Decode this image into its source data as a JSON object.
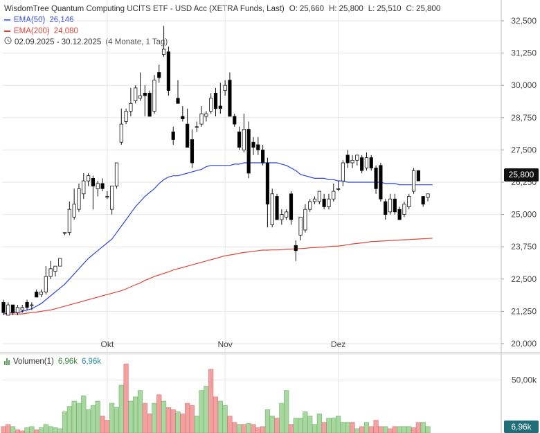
{
  "header": {
    "title": "WisdomTree Quantum Computing UCITS ETF - USD Acc (XETRA Funds, Last)",
    "ohlc": {
      "o_label": "O:",
      "o": "25,660",
      "h_label": "H:",
      "h": "25,800",
      "l_label": "L:",
      "l": "25,510",
      "c_label": "C:",
      "c": "25,800"
    },
    "ema50": {
      "label": "EMA(50)",
      "value": "26,146",
      "color": "#2b45d6"
    },
    "ema200": {
      "label": "EMA(200)",
      "value": "24,080",
      "color": "#e0453a"
    },
    "range": {
      "icon": "clock-icon",
      "dates": "02.09.2025 - 30.12.2025",
      "span": "(4 Monate, 1 Tag)"
    }
  },
  "last_price_badge": "25,800",
  "volume": {
    "label": "Volumen(1)",
    "value1": "6,96k",
    "value2": "6,96k",
    "badge": "6,96k",
    "axis_label": "50,00k"
  },
  "colors": {
    "up": "#ffffff",
    "down": "#000000",
    "vol_up": "#a8d8a0",
    "vol_down": "#f2a0a0",
    "grid": "#e6e6e6"
  },
  "chart_data": {
    "type": "candlestick",
    "y_axis": {
      "ticks": [
        "32,500",
        "31,250",
        "30,000",
        "28,750",
        "27,500",
        "26,250",
        "25,000",
        "23,750",
        "22,500",
        "21,250",
        "20,000"
      ],
      "tick_values": [
        32.5,
        31.25,
        30,
        28.75,
        27.5,
        26.25,
        25,
        23.75,
        22.5,
        21.25,
        20
      ],
      "ylim": [
        20.0,
        32.5
      ],
      "position": "right"
    },
    "x_axis": {
      "labels": [
        "Okt",
        "Nov",
        "Dez"
      ],
      "label_index": [
        22,
        47,
        71
      ]
    },
    "candles": [
      {
        "o": 21.6,
        "h": 21.7,
        "l": 21.1,
        "c": 21.2
      },
      {
        "o": 21.1,
        "h": 21.6,
        "l": 21.1,
        "c": 21.5
      },
      {
        "o": 21.5,
        "h": 21.5,
        "l": 21.1,
        "c": 21.2
      },
      {
        "o": 21.2,
        "h": 21.5,
        "l": 21.1,
        "c": 21.4
      },
      {
        "o": 21.3,
        "h": 21.5,
        "l": 21.2,
        "c": 21.4
      },
      {
        "o": 21.6,
        "h": 21.7,
        "l": 21.3,
        "c": 21.4
      },
      {
        "o": 21.5,
        "h": 21.6,
        "l": 21.3,
        "c": 21.5
      },
      {
        "o": 22.0,
        "h": 22.1,
        "l": 21.8,
        "c": 21.8
      },
      {
        "o": 21.9,
        "h": 22.1,
        "l": 21.8,
        "c": 22.0
      },
      {
        "o": 22.0,
        "h": 23.0,
        "l": 21.9,
        "c": 22.6
      },
      {
        "o": 22.6,
        "h": 23.2,
        "l": 22.5,
        "c": 22.9
      },
      {
        "o": 22.8,
        "h": 23.0,
        "l": 22.6,
        "c": 23.0
      },
      {
        "o": 23.0,
        "h": 23.3,
        "l": 23.0,
        "c": 23.3
      },
      {
        "o": 24.3,
        "h": 24.3,
        "l": 24.2,
        "c": 24.3
      },
      {
        "o": 24.3,
        "h": 25.5,
        "l": 24.2,
        "c": 25.2
      },
      {
        "o": 24.9,
        "h": 26.0,
        "l": 24.8,
        "c": 25.4
      },
      {
        "o": 25.2,
        "h": 26.2,
        "l": 25.1,
        "c": 26.0
      },
      {
        "o": 25.8,
        "h": 26.6,
        "l": 25.6,
        "c": 26.3
      },
      {
        "o": 26.3,
        "h": 26.6,
        "l": 26.1,
        "c": 26.5
      },
      {
        "o": 26.4,
        "h": 26.5,
        "l": 25.2,
        "c": 26.1
      },
      {
        "o": 26.0,
        "h": 26.3,
        "l": 25.7,
        "c": 26.2
      },
      {
        "o": 26.2,
        "h": 26.4,
        "l": 25.9,
        "c": 26.0
      },
      {
        "o": 25.7,
        "h": 25.9,
        "l": 25.6,
        "c": 25.7
      },
      {
        "o": 25.2,
        "h": 26.0,
        "l": 25.0,
        "c": 26.1
      },
      {
        "o": 26.1,
        "h": 27.0,
        "l": 26.0,
        "c": 27.0
      },
      {
        "o": 27.8,
        "h": 29.1,
        "l": 27.7,
        "c": 28.5
      },
      {
        "o": 28.6,
        "h": 29.1,
        "l": 28.5,
        "c": 29.0
      },
      {
        "o": 29.0,
        "h": 29.9,
        "l": 28.8,
        "c": 29.3
      },
      {
        "o": 29.4,
        "h": 30.0,
        "l": 29.3,
        "c": 29.9
      },
      {
        "o": 29.5,
        "h": 30.5,
        "l": 29.4,
        "c": 29.6
      },
      {
        "o": 29.7,
        "h": 30.0,
        "l": 28.8,
        "c": 29.6
      },
      {
        "o": 29.7,
        "h": 29.8,
        "l": 28.8,
        "c": 28.8
      },
      {
        "o": 29.0,
        "h": 30.4,
        "l": 28.9,
        "c": 30.2
      },
      {
        "o": 30.5,
        "h": 30.8,
        "l": 30.1,
        "c": 30.3
      },
      {
        "o": 31.2,
        "h": 32.3,
        "l": 31.1,
        "c": 31.4
      },
      {
        "o": 31.3,
        "h": 31.5,
        "l": 29.6,
        "c": 29.8
      },
      {
        "o": 28.2,
        "h": 28.4,
        "l": 27.7,
        "c": 27.9
      },
      {
        "o": 29.5,
        "h": 30.2,
        "l": 29.3,
        "c": 29.3
      },
      {
        "o": 28.8,
        "h": 29.2,
        "l": 28.6,
        "c": 28.7
      },
      {
        "o": 28.5,
        "h": 29.1,
        "l": 27.6,
        "c": 27.6
      },
      {
        "o": 27.9,
        "h": 28.3,
        "l": 26.8,
        "c": 27.0
      },
      {
        "o": 28.4,
        "h": 28.6,
        "l": 28.2,
        "c": 28.4
      },
      {
        "o": 28.5,
        "h": 29.2,
        "l": 28.4,
        "c": 28.9
      },
      {
        "o": 28.8,
        "h": 29.0,
        "l": 28.6,
        "c": 28.9
      },
      {
        "o": 29.0,
        "h": 29.7,
        "l": 28.9,
        "c": 29.5
      },
      {
        "o": 29.7,
        "h": 29.9,
        "l": 28.8,
        "c": 29.1
      },
      {
        "o": 29.2,
        "h": 30.1,
        "l": 28.9,
        "c": 29.1
      },
      {
        "o": 29.8,
        "h": 30.2,
        "l": 29.6,
        "c": 30.0
      },
      {
        "o": 30.2,
        "h": 30.5,
        "l": 28.8,
        "c": 28.8
      },
      {
        "o": 28.8,
        "h": 28.9,
        "l": 28.4,
        "c": 28.5
      },
      {
        "o": 28.2,
        "h": 28.4,
        "l": 27.5,
        "c": 27.6
      },
      {
        "o": 27.5,
        "h": 28.9,
        "l": 27.4,
        "c": 28.3
      },
      {
        "o": 28.3,
        "h": 28.6,
        "l": 26.4,
        "c": 26.6
      },
      {
        "o": 27.8,
        "h": 28.0,
        "l": 27.3,
        "c": 27.6
      },
      {
        "o": 27.7,
        "h": 28.0,
        "l": 27.3,
        "c": 27.5
      },
      {
        "o": 27.5,
        "h": 27.7,
        "l": 26.9,
        "c": 27.0
      },
      {
        "o": 27.0,
        "h": 27.2,
        "l": 24.5,
        "c": 25.4
      },
      {
        "o": 24.6,
        "h": 26.0,
        "l": 24.5,
        "c": 25.8
      },
      {
        "o": 25.7,
        "h": 25.8,
        "l": 24.8,
        "c": 24.8
      },
      {
        "o": 24.8,
        "h": 25.2,
        "l": 24.6,
        "c": 25.0
      },
      {
        "o": 24.9,
        "h": 25.2,
        "l": 24.8,
        "c": 25.1
      },
      {
        "o": 25.8,
        "h": 25.9,
        "l": 24.6,
        "c": 24.8
      },
      {
        "o": 23.8,
        "h": 24.0,
        "l": 23.2,
        "c": 23.6
      },
      {
        "o": 24.2,
        "h": 24.9,
        "l": 24.0,
        "c": 24.9
      },
      {
        "o": 24.4,
        "h": 25.4,
        "l": 24.3,
        "c": 25.2
      },
      {
        "o": 25.2,
        "h": 25.6,
        "l": 25.1,
        "c": 25.5
      },
      {
        "o": 25.5,
        "h": 25.7,
        "l": 25.4,
        "c": 25.6
      },
      {
        "o": 25.5,
        "h": 25.9,
        "l": 25.4,
        "c": 25.9
      },
      {
        "o": 25.6,
        "h": 25.8,
        "l": 25.2,
        "c": 25.3
      },
      {
        "o": 25.3,
        "h": 25.8,
        "l": 25.2,
        "c": 25.6
      },
      {
        "o": 25.6,
        "h": 26.2,
        "l": 25.5,
        "c": 25.9
      },
      {
        "o": 26.0,
        "h": 26.3,
        "l": 25.9,
        "c": 26.0
      },
      {
        "o": 26.3,
        "h": 27.1,
        "l": 26.1,
        "c": 27.0
      },
      {
        "o": 27.3,
        "h": 27.5,
        "l": 26.8,
        "c": 27.0
      },
      {
        "o": 27.0,
        "h": 27.3,
        "l": 26.8,
        "c": 27.1
      },
      {
        "o": 27.1,
        "h": 27.3,
        "l": 26.9,
        "c": 27.3
      },
      {
        "o": 27.2,
        "h": 27.3,
        "l": 26.6,
        "c": 26.7
      },
      {
        "o": 26.8,
        "h": 27.4,
        "l": 26.7,
        "c": 27.2
      },
      {
        "o": 27.2,
        "h": 27.3,
        "l": 26.7,
        "c": 26.8
      },
      {
        "o": 26.8,
        "h": 26.9,
        "l": 25.8,
        "c": 26.0
      },
      {
        "o": 26.9,
        "h": 27.0,
        "l": 25.5,
        "c": 25.6
      },
      {
        "o": 25.5,
        "h": 25.6,
        "l": 24.8,
        "c": 25.0
      },
      {
        "o": 25.1,
        "h": 25.8,
        "l": 25.0,
        "c": 25.6
      },
      {
        "o": 25.6,
        "h": 25.8,
        "l": 25.0,
        "c": 25.1
      },
      {
        "o": 25.2,
        "h": 25.3,
        "l": 24.8,
        "c": 24.8
      },
      {
        "o": 25.0,
        "h": 25.5,
        "l": 24.9,
        "c": 25.4
      },
      {
        "o": 25.3,
        "h": 25.8,
        "l": 25.2,
        "c": 25.7
      },
      {
        "o": 25.9,
        "h": 26.8,
        "l": 25.8,
        "c": 26.7
      },
      {
        "o": 26.7,
        "h": 26.7,
        "l": 26.3,
        "c": 26.3
      },
      {
        "o": 25.7,
        "h": 25.7,
        "l": 25.3,
        "c": 25.4
      },
      {
        "o": 25.66,
        "h": 25.8,
        "l": 25.51,
        "c": 25.8
      }
    ],
    "ema50": [
      21.15,
      21.2,
      21.2,
      21.2,
      21.25,
      21.3,
      21.35,
      21.45,
      21.55,
      21.7,
      21.85,
      22.0,
      22.15,
      22.3,
      22.5,
      22.7,
      22.9,
      23.1,
      23.3,
      23.45,
      23.6,
      23.75,
      23.9,
      24.05,
      24.3,
      24.55,
      24.8,
      25.05,
      25.3,
      25.5,
      25.7,
      25.85,
      26.0,
      26.2,
      26.35,
      26.45,
      26.5,
      26.5,
      26.55,
      26.6,
      26.65,
      26.7,
      26.75,
      26.85,
      26.9,
      26.9,
      26.9,
      26.9,
      26.9,
      26.95,
      26.95,
      27.0,
      27.0,
      27.0,
      27.0,
      27.0,
      27.0,
      27.0,
      27.0,
      26.95,
      26.9,
      26.8,
      26.7,
      26.55,
      26.5,
      26.45,
      26.4,
      26.4,
      26.4,
      26.35,
      26.35,
      26.3,
      26.3,
      26.25,
      26.25,
      26.25,
      26.25,
      26.25,
      26.25,
      26.25,
      26.25,
      26.2,
      26.2,
      26.2,
      26.15,
      26.15,
      26.15,
      26.15,
      26.15,
      26.15,
      26.15,
      26.15
    ],
    "ema200": [
      21.15,
      21.15,
      21.15,
      21.15,
      21.15,
      21.18,
      21.2,
      21.22,
      21.25,
      21.28,
      21.3,
      21.35,
      21.4,
      21.45,
      21.5,
      21.55,
      21.6,
      21.65,
      21.7,
      21.75,
      21.8,
      21.85,
      21.9,
      21.95,
      22.0,
      22.05,
      22.12,
      22.2,
      22.28,
      22.35,
      22.45,
      22.52,
      22.6,
      22.66,
      22.72,
      22.78,
      22.85,
      22.9,
      22.95,
      23.0,
      23.05,
      23.1,
      23.15,
      23.2,
      23.25,
      23.3,
      23.35,
      23.4,
      23.43,
      23.46,
      23.5,
      23.53,
      23.55,
      23.57,
      23.6,
      23.62,
      23.62,
      23.63,
      23.63,
      23.64,
      23.65,
      23.66,
      23.67,
      23.68,
      23.69,
      23.71,
      23.72,
      23.73,
      23.74,
      23.76,
      23.77,
      23.78,
      23.8,
      23.83,
      23.86,
      23.88,
      23.9,
      23.92,
      23.95,
      23.96,
      23.97,
      23.98,
      23.99,
      24.0,
      24.01,
      24.02,
      24.03,
      24.04,
      24.05,
      24.06,
      24.07,
      24.08
    ],
    "volume": {
      "axis_ticks": [
        "50,00k"
      ],
      "axis_tick_values": [
        50
      ],
      "ylim": [
        0,
        75
      ],
      "values_k": [
        6,
        8,
        6,
        3,
        2,
        5,
        6,
        3,
        5,
        8,
        6,
        5,
        4,
        20,
        25,
        30,
        28,
        35,
        22,
        26,
        30,
        16,
        12,
        28,
        24,
        45,
        65,
        30,
        34,
        40,
        28,
        18,
        28,
        36,
        30,
        24,
        22,
        20,
        18,
        28,
        26,
        16,
        40,
        44,
        60,
        34,
        30,
        26,
        16,
        10,
        8,
        8,
        9,
        8,
        5,
        6,
        22,
        16,
        14,
        28,
        40,
        8,
        14,
        14,
        20,
        16,
        8,
        18,
        10,
        14,
        14,
        16,
        10,
        10,
        10,
        4,
        6,
        10,
        6,
        12,
        6,
        6,
        4,
        6,
        6,
        6,
        6,
        5,
        10,
        10,
        6,
        7
      ],
      "up_flags": [
        0,
        0,
        1,
        0,
        0,
        1,
        1,
        0,
        1,
        1,
        1,
        1,
        1,
        1,
        1,
        1,
        1,
        1,
        1,
        1,
        1,
        0,
        0,
        1,
        1,
        1,
        0,
        1,
        1,
        1,
        0,
        0,
        1,
        0,
        1,
        0,
        0,
        1,
        0,
        0,
        0,
        1,
        1,
        1,
        0,
        0,
        1,
        1,
        0,
        0,
        1,
        0,
        1,
        0,
        0,
        0,
        1,
        1,
        0,
        1,
        1,
        0,
        1,
        1,
        1,
        1,
        1,
        1,
        0,
        1,
        1,
        1,
        1,
        1,
        0,
        1,
        0,
        1,
        0,
        0,
        0,
        1,
        0,
        0,
        1,
        1,
        1,
        0,
        0,
        1,
        1,
        1
      ]
    }
  }
}
